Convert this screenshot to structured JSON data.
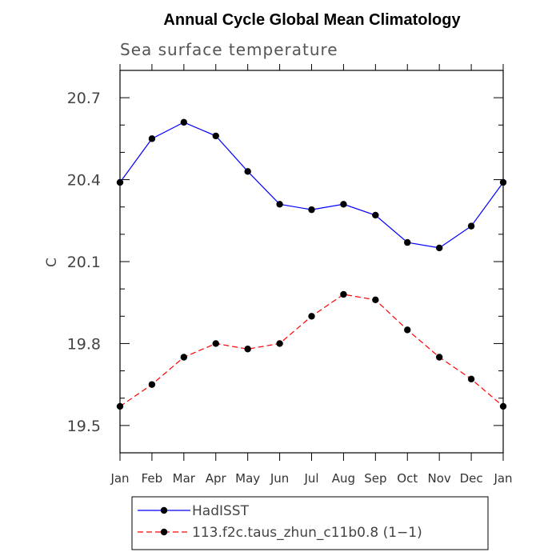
{
  "chart_data": {
    "type": "line",
    "title": "Annual Cycle Global Mean Climatology",
    "subtitle": "Sea surface temperature",
    "ylabel": "C",
    "xlabel": "",
    "categories": [
      "Jan",
      "Feb",
      "Mar",
      "Apr",
      "May",
      "Jun",
      "Jul",
      "Aug",
      "Sep",
      "Oct",
      "Nov",
      "Dec",
      "Jan"
    ],
    "ylim": [
      19.4,
      20.8
    ],
    "yticks": [
      "19.5",
      "19.8",
      "20.1",
      "20.4",
      "20.7"
    ],
    "yticks_values": [
      19.5,
      19.8,
      20.1,
      20.4,
      20.7
    ],
    "grid": false,
    "legend_position": "bottom",
    "series": [
      {
        "name": "HadISST",
        "color": "#0000ff",
        "dash": "solid",
        "marker": "circle",
        "values": [
          20.39,
          20.55,
          20.61,
          20.56,
          20.43,
          20.31,
          20.29,
          20.31,
          20.27,
          20.17,
          20.15,
          20.23,
          20.39
        ]
      },
      {
        "name": "113.f2c.taus_zhun_c11b0.8 (1−1)",
        "color": "#ff0000",
        "dash": "dashed",
        "marker": "circle",
        "values": [
          19.57,
          19.65,
          19.75,
          19.8,
          19.78,
          19.8,
          19.9,
          19.98,
          19.96,
          19.85,
          19.75,
          19.67,
          19.57
        ]
      }
    ]
  }
}
